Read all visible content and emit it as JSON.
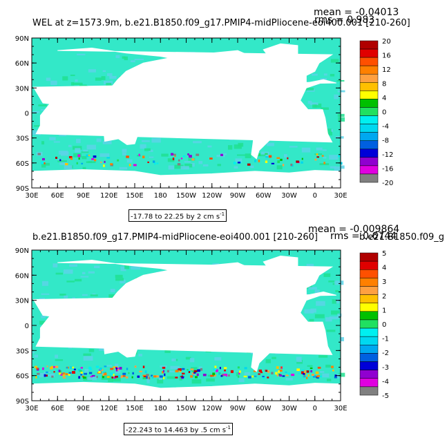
{
  "colors": {
    "ocean": "#33e8c8",
    "ocean_alt": "#5cd4e8",
    "land": "#ffffff",
    "palette": [
      "#808080",
      "#e000e0",
      "#9000d0",
      "#0000d8",
      "#0060e0",
      "#00a8f0",
      "#00d8f0",
      "#00f0f0",
      "#20e060",
      "#00c000",
      "#ffff00",
      "#ffc000",
      "#ffa040",
      "#ff8000",
      "#ff5000",
      "#e00000",
      "#b00000"
    ]
  },
  "chart_data": [
    {
      "type": "heatmap",
      "title_left": "WEL at z=1573.9m, b.e21.B1850.f09_g17.PMIP4-midPliocene-eoi400.001  [210-260]",
      "mean_text": "mean = -0.04013",
      "rms_text": "rms = 0.983",
      "x_ticks": [
        "30E",
        "60E",
        "90E",
        "120E",
        "150E",
        "180",
        "150W",
        "120W",
        "90W",
        "60W",
        "30W",
        "0",
        "30E"
      ],
      "y_ticks": [
        "90N",
        "60N",
        "30N",
        "0",
        "30S",
        "60S",
        "90S"
      ],
      "colorbar_labels": [
        "20",
        "16",
        "12",
        "8",
        "4",
        "0",
        "-4",
        "-8",
        "-12",
        "-16",
        "-20"
      ],
      "range_text": "-17.78 to 22.25 by 2 cm s",
      "range_sup": "-1",
      "value_min": -17.78,
      "value_max": 22.25,
      "contour_interval": 2,
      "units": "cm s-1"
    },
    {
      "type": "heatmap",
      "title_left": "b.e21.B1850.f09_g17.PMIP4-midPliocene-eoi400.001  [210-260]",
      "title_right_overlap": "b.e21.B1850.f09_g",
      "mean_text": "mean = -0.009864",
      "rms_text": "rms = 0.6744",
      "x_ticks": [
        "30E",
        "60E",
        "90E",
        "120E",
        "150E",
        "180",
        "150W",
        "120W",
        "90W",
        "60W",
        "30W",
        "0",
        "30E"
      ],
      "y_ticks": [
        "90N",
        "60N",
        "30N",
        "0",
        "30S",
        "60S",
        "90S"
      ],
      "colorbar_labels": [
        "5",
        "4",
        "3",
        "2",
        "1",
        "0",
        "-1",
        "-2",
        "-3",
        "-4",
        "-5"
      ],
      "range_text": "-22.243 to 14.463 by .5 cm s",
      "range_sup": "-1",
      "value_min": -22.243,
      "value_max": 14.463,
      "contour_interval": 0.5,
      "units": "cm s-1"
    }
  ]
}
